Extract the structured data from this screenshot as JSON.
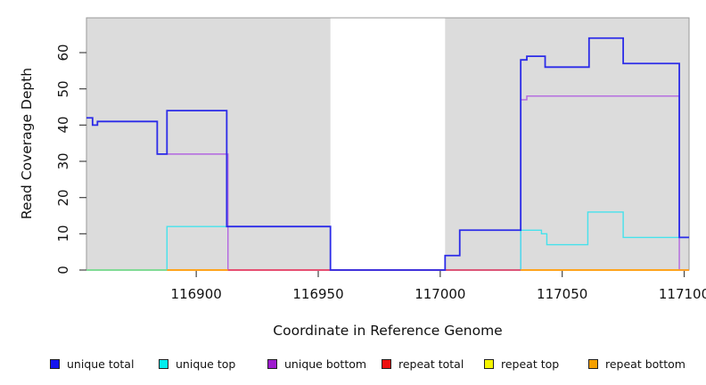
{
  "chart_data": {
    "type": "line",
    "subtype": "step-coverage-plot",
    "title": "",
    "xlabel": "Coordinate in Reference Genome",
    "ylabel": "Read Coverage Depth",
    "x_range": [
      116855,
      117102
    ],
    "y_range": [
      0,
      69.6
    ],
    "x_ticks": [
      116900,
      116950,
      117000,
      117050,
      117100
    ],
    "y_ticks": [
      0,
      10,
      20,
      30,
      40,
      50,
      60
    ],
    "grid": false,
    "panel_bg": "#DCDCDC",
    "masked_region": {
      "x1": 116955,
      "x2": 117002,
      "color": "#FFFFFF"
    },
    "legend_position": "bottom",
    "series": [
      {
        "key": "unique_total",
        "label": "unique total",
        "color": "#1414EE",
        "line_color": "#2B2BE8",
        "line_width": 1.8,
        "steps": [
          {
            "x": 116855,
            "y": 42
          },
          {
            "x": 116857.5,
            "y": 40
          },
          {
            "x": 116859.5,
            "y": 41
          },
          {
            "x": 116884,
            "y": 32
          },
          {
            "x": 116888,
            "y": 44
          },
          {
            "x": 116912.5,
            "y": 12
          },
          {
            "x": 116955,
            "y": 0
          },
          {
            "x": 117002,
            "y": 4
          },
          {
            "x": 117008,
            "y": 11
          },
          {
            "x": 117033,
            "y": 58
          },
          {
            "x": 117035.5,
            "y": 59
          },
          {
            "x": 117043,
            "y": 56
          },
          {
            "x": 117061,
            "y": 64
          },
          {
            "x": 117075,
            "y": 57
          },
          {
            "x": 117098,
            "y": 9
          }
        ]
      },
      {
        "key": "unique_top",
        "label": "unique top",
        "color": "#00EEEE",
        "line_color": "#45E2EC",
        "line_width": 1.4,
        "steps": [
          {
            "x": 116855,
            "y": 0
          },
          {
            "x": 116888,
            "y": 12
          },
          {
            "x": 116955,
            "y": 0
          },
          {
            "x": 117033,
            "y": 11
          },
          {
            "x": 117041.5,
            "y": 10
          },
          {
            "x": 117043.7,
            "y": 7
          },
          {
            "x": 117060.5,
            "y": 16
          },
          {
            "x": 117075,
            "y": 9
          }
        ]
      },
      {
        "key": "unique_bottom",
        "label": "unique bottom",
        "color": "#9E1CCE",
        "line_color": "#B266E0",
        "line_width": 1.4,
        "steps": [
          {
            "x": 116855,
            "y": 42
          },
          {
            "x": 116857.5,
            "y": 40
          },
          {
            "x": 116859.5,
            "y": 41
          },
          {
            "x": 116884,
            "y": 32
          },
          {
            "x": 116913,
            "y": 0
          },
          {
            "x": 117033,
            "y": 47
          },
          {
            "x": 117035.5,
            "y": 48
          },
          {
            "x": 117098,
            "y": 0
          }
        ]
      },
      {
        "key": "repeat_total",
        "label": "repeat total",
        "color": "#EE1111",
        "line_color": "#E8486E",
        "line_width": 1.2,
        "steps": [
          {
            "x": 116855,
            "y": 0
          }
        ]
      },
      {
        "key": "repeat_top",
        "label": "repeat top",
        "color": "#F5F500",
        "line_color": "#E8E84A",
        "line_width": 1.2,
        "steps": [
          {
            "x": 116855,
            "y": 0
          }
        ]
      },
      {
        "key": "repeat_bottom",
        "label": "repeat bottom",
        "color": "#F5A000",
        "line_color": "#FFA319",
        "line_width": 1.8,
        "steps": [
          {
            "x": 116855,
            "y": 0
          }
        ]
      }
    ],
    "zero_line_visible_segments": [
      {
        "x1": 116855,
        "x2": 116888,
        "color": "#7DDE96"
      },
      {
        "x1": 116888,
        "x2": 116913,
        "color": "#FFA319"
      },
      {
        "x1": 116913,
        "x2": 117033,
        "color": "#E8486E"
      },
      {
        "x1": 117033,
        "x2": 117102,
        "color": "#FFA319"
      }
    ]
  }
}
